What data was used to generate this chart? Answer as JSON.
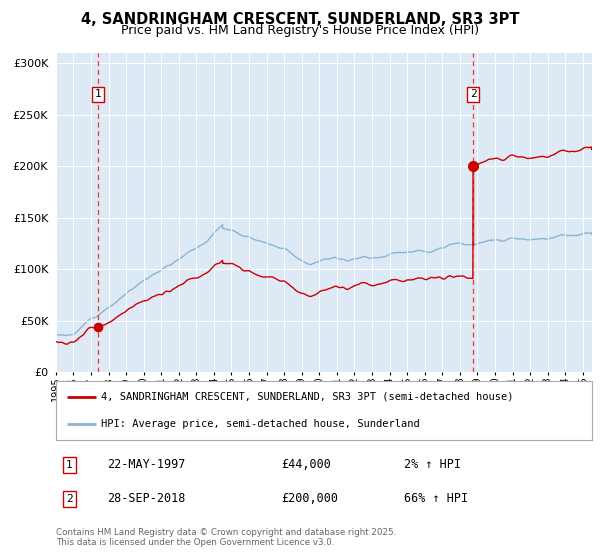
{
  "title": "4, SANDRINGHAM CRESCENT, SUNDERLAND, SR3 3PT",
  "subtitle": "Price paid vs. HM Land Registry's House Price Index (HPI)",
  "bg_color": "#ddeaf5",
  "hpi_line_color": "#8ab4d4",
  "price_line_color": "#cc0000",
  "marker_color": "#cc0000",
  "dashed_line_color": "#ee3333",
  "sale1_date": "22-MAY-1997",
  "sale1_price": 44000,
  "sale1_label": "2% ↑ HPI",
  "sale2_date": "28-SEP-2018",
  "sale2_price": 200000,
  "sale2_label": "66% ↑ HPI",
  "legend_label1": "4, SANDRINGHAM CRESCENT, SUNDERLAND, SR3 3PT (semi-detached house)",
  "legend_label2": "HPI: Average price, semi-detached house, Sunderland",
  "footer": "Contains HM Land Registry data © Crown copyright and database right 2025.\nThis data is licensed under the Open Government Licence v3.0.",
  "ylim": [
    0,
    310000
  ],
  "yticks": [
    0,
    50000,
    100000,
    150000,
    200000,
    250000,
    300000
  ],
  "ytick_labels": [
    "£0",
    "£50K",
    "£100K",
    "£150K",
    "£200K",
    "£250K",
    "£300K"
  ],
  "sale1_x": 1997.39,
  "sale2_x": 2018.75,
  "xmin": 1995.0,
  "xmax": 2025.5
}
